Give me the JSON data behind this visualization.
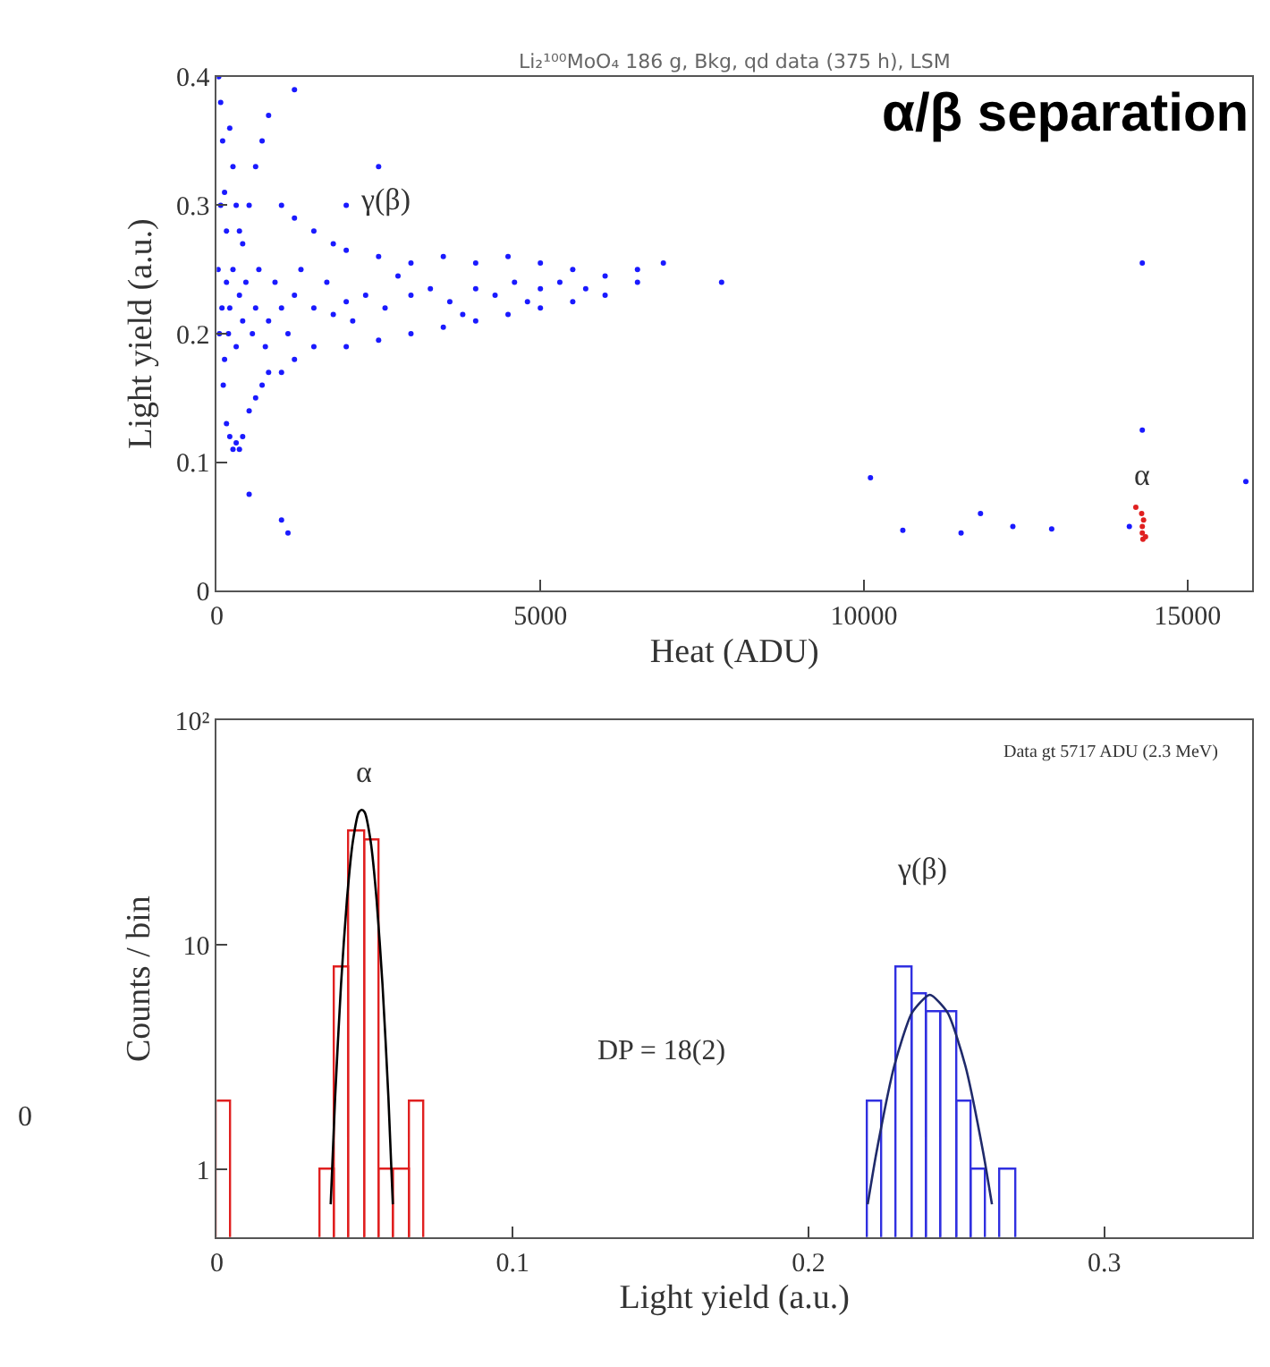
{
  "chart_data": [
    {
      "type": "scatter",
      "title": "Li₂¹⁰⁰MoO₄ 186 g, Bkg, qd data (375 h), LSM",
      "xlabel": "Heat (ADU)",
      "ylabel": "Light yield (a.u.)",
      "annotations": [
        "γ(β)",
        "α/β separation",
        "α"
      ],
      "xlim": [
        0,
        16000
      ],
      "xticks": [
        0,
        5000,
        10000,
        15000
      ],
      "ylim": [
        0,
        0.4
      ],
      "yticks": [
        0,
        0.1,
        0.2,
        0.3,
        0.4
      ],
      "marker": "circle",
      "series": [
        {
          "color": "#1a1aff",
          "x": [
            30,
            60,
            90,
            120,
            150,
            100,
            150,
            200,
            250,
            300,
            350,
            400,
            200,
            250,
            300,
            350,
            400,
            500,
            600,
            700,
            800,
            500,
            600,
            700,
            800,
            1000,
            1200,
            1500,
            1000,
            1200,
            1500,
            1800,
            2000,
            2500,
            3000,
            3500,
            4000,
            4500,
            5000,
            5500,
            6000,
            6500,
            2000,
            2500,
            3000,
            3500,
            4000,
            4500,
            5000,
            5500,
            6000,
            200,
            400,
            600,
            800,
            1000,
            1200,
            1500,
            1800,
            2000,
            2300,
            2600,
            3000,
            3300,
            3600,
            4000,
            4300,
            4600,
            5000,
            5300,
            5700,
            20,
            40,
            60,
            80,
            120,
            150,
            180,
            250,
            300,
            350,
            450,
            550,
            650,
            750,
            900,
            1100,
            1300,
            1700,
            2100,
            2800,
            3800,
            4800,
            6500,
            6900,
            7800,
            1000,
            1100,
            10100,
            10600,
            11500,
            11800,
            12300,
            12900,
            14100,
            14300,
            14300,
            15900,
            500,
            2500,
            2000,
            1200
          ],
          "values": [
            0.4,
            0.38,
            0.35,
            0.31,
            0.28,
            0.16,
            0.13,
            0.12,
            0.11,
            0.115,
            0.11,
            0.12,
            0.36,
            0.33,
            0.3,
            0.28,
            0.27,
            0.3,
            0.33,
            0.35,
            0.37,
            0.14,
            0.15,
            0.16,
            0.17,
            0.17,
            0.18,
            0.19,
            0.3,
            0.29,
            0.28,
            0.27,
            0.265,
            0.26,
            0.255,
            0.26,
            0.255,
            0.26,
            0.255,
            0.25,
            0.245,
            0.24,
            0.19,
            0.195,
            0.2,
            0.205,
            0.21,
            0.215,
            0.22,
            0.225,
            0.23,
            0.22,
            0.21,
            0.22,
            0.21,
            0.22,
            0.23,
            0.22,
            0.215,
            0.225,
            0.23,
            0.22,
            0.23,
            0.235,
            0.225,
            0.235,
            0.23,
            0.24,
            0.235,
            0.24,
            0.235,
            0.25,
            0.2,
            0.3,
            0.22,
            0.18,
            0.24,
            0.2,
            0.25,
            0.19,
            0.23,
            0.24,
            0.2,
            0.25,
            0.19,
            0.24,
            0.2,
            0.25,
            0.24,
            0.21,
            0.245,
            0.215,
            0.225,
            0.25,
            0.255,
            0.24,
            0.055,
            0.045,
            0.088,
            0.047,
            0.045,
            0.06,
            0.05,
            0.048,
            0.05,
            0.255,
            0.125,
            0.085,
            0.075,
            0.33,
            0.3,
            0.39
          ]
        },
        {
          "color": "#e02020",
          "x": [
            14300,
            14300,
            14320,
            14310,
            14290,
            14200,
            14350
          ],
          "values": [
            0.05,
            0.045,
            0.055,
            0.04,
            0.06,
            0.065,
            0.042
          ]
        }
      ]
    },
    {
      "type": "histogram",
      "xlabel": "Light yield (a.u.)",
      "ylabel": "Counts / bin",
      "log": true,
      "annotations": [
        "α",
        "γ(β)",
        "DP = 18(2)",
        "Data gt 5717 ADU (2.3 MeV)",
        "0"
      ],
      "xlim": [
        0,
        0.35
      ],
      "xticks": [
        0,
        0.1,
        0.2,
        0.3
      ],
      "ylim": [
        0.5,
        100
      ],
      "yticks": [
        1,
        10,
        {
          "value": 100,
          "label": "10²"
        }
      ],
      "series": [
        {
          "type": "histogram",
          "color": "#e02020",
          "bins": [
            0,
            0.005,
            0.01,
            0.015,
            0.02,
            0.025,
            0.03,
            0.035,
            0.04,
            0.045,
            0.05,
            0.055,
            0.06,
            0.065,
            0.07
          ],
          "values": [
            2,
            null,
            null,
            null,
            null,
            null,
            null,
            1,
            8,
            32,
            29,
            1,
            1,
            2
          ]
        },
        {
          "type": "histogram",
          "color": "#3030e0",
          "bins": [
            0.22,
            0.225,
            0.23,
            0.235,
            0.24,
            0.245,
            0.25,
            0.255,
            0.26,
            0.265,
            0.27
          ],
          "values": [
            2,
            null,
            8,
            6,
            5,
            5,
            2,
            1,
            null,
            1
          ]
        },
        {
          "type": "line",
          "color": "#000000",
          "x": [
            0.0385,
            0.04,
            0.042,
            0.044,
            0.046,
            0.048,
            0.049,
            0.05,
            0.052,
            0.054,
            0.056,
            0.058,
            0.0595
          ],
          "values": [
            0.7,
            2.1,
            6.7,
            16,
            29,
            39,
            40,
            39,
            29,
            16,
            6.7,
            2.1,
            0.7
          ]
        },
        {
          "type": "line",
          "color": "#1f2a6b",
          "x": [
            0.22,
            0.223,
            0.229,
            0.235,
            0.241,
            0.247,
            0.253,
            0.259,
            0.262
          ],
          "values": [
            0.7,
            1.2,
            2.9,
            5,
            6,
            5,
            2.9,
            1.2,
            0.7
          ]
        }
      ]
    }
  ]
}
